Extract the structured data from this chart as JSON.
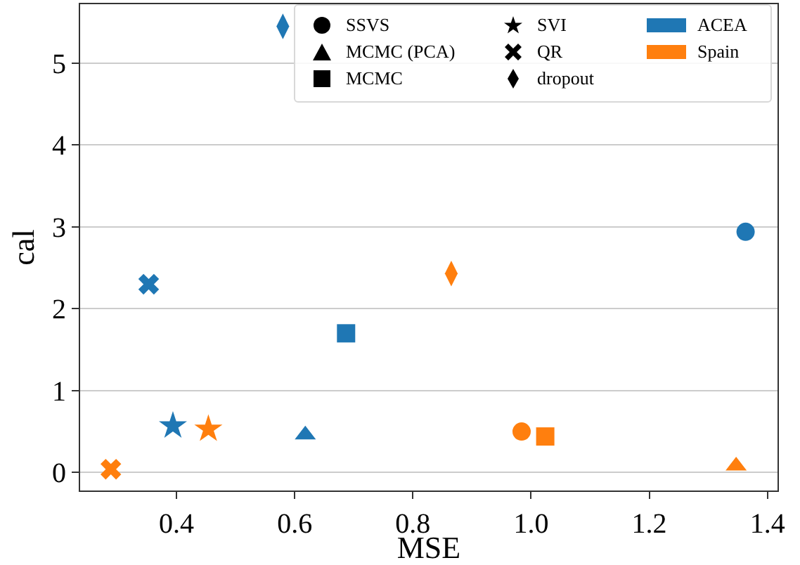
{
  "chart_data": {
    "type": "scatter",
    "xlabel": "MSE",
    "ylabel": "cal",
    "xlim": [
      0.237,
      1.417
    ],
    "xticks": [
      0.4,
      0.6,
      0.8,
      {
        "value": 1,
        "label": "1.0"
      },
      1.2,
      1.4
    ],
    "ylim": [
      -0.22,
      5.72
    ],
    "yticks": [
      0,
      1,
      2,
      3,
      4,
      5
    ],
    "grid": "y",
    "legend": "top right",
    "annotations": [
      "SSVS",
      "MCMC (PCA)",
      "MCMC",
      "SVI",
      "QR",
      "dropout"
    ],
    "series": [
      {
        "name": "ACEA",
        "color": "#1f77b4",
        "marker": [
          "circle",
          "triangle",
          "square",
          "star",
          "cross",
          "diamond"
        ],
        "x": [
          1.363,
          0.618,
          0.687,
          0.394,
          0.353,
          0.58
        ],
        "values": [
          2.94,
          0.46,
          1.7,
          0.57,
          2.3,
          5.45
        ]
      },
      {
        "name": "Spain",
        "color": "#ff7f0e",
        "marker": [
          "circle",
          "triangle",
          "square",
          "star",
          "cross",
          "diamond"
        ],
        "x": [
          0.984,
          1.347,
          1.024,
          0.454,
          0.289,
          0.865
        ],
        "values": [
          0.5,
          0.08,
          0.44,
          0.53,
          0.04,
          2.43
        ]
      }
    ]
  }
}
